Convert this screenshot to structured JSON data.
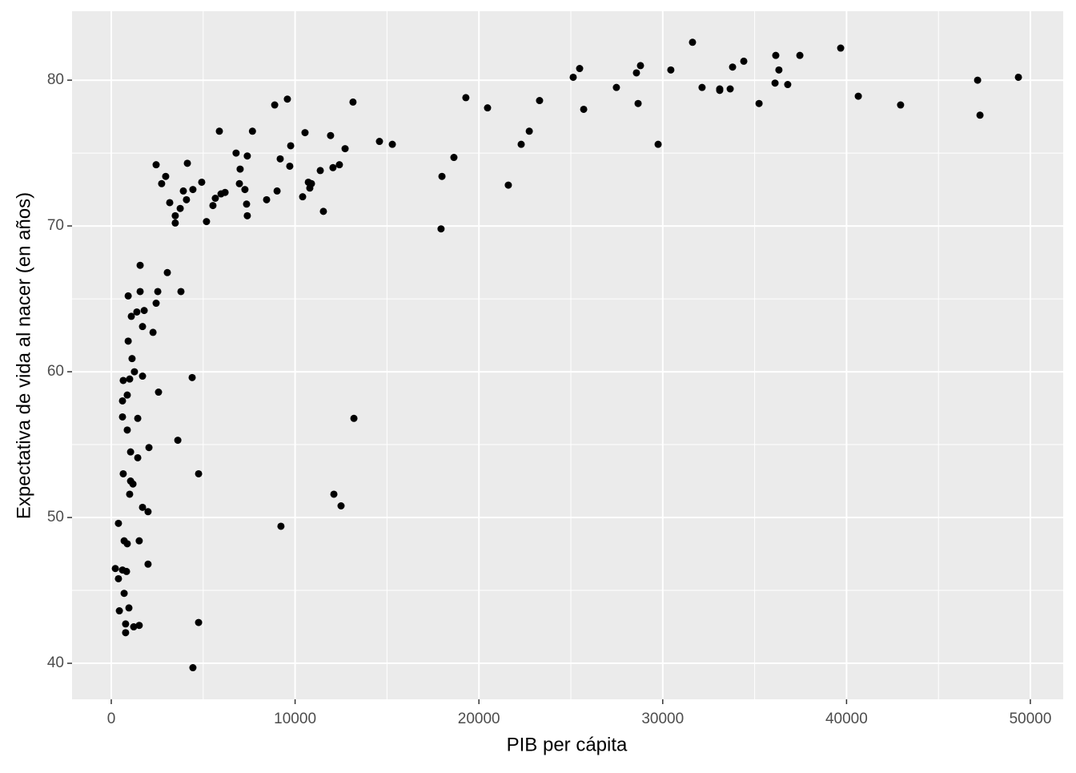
{
  "chart_data": {
    "type": "scatter",
    "x_label": "PIB per cápita",
    "y_label": "Expectativa de vida al nacer (en años)",
    "x": [
      49350,
      47130,
      47260,
      42940,
      40640,
      39680,
      37460,
      36800,
      36110,
      36320,
      36150,
      35240,
      34410,
      33800,
      33670,
      33100,
      33100,
      32140,
      31620,
      30440,
      29750,
      28790,
      28660,
      28570,
      27480,
      25700,
      25480,
      25130,
      23300,
      22740,
      22300,
      21600,
      20470,
      19290,
      18640,
      17990,
      17940,
      15290,
      14590,
      13150,
      13200,
      12720,
      12410,
      12060,
      11930,
      12500,
      12110,
      11540,
      11370,
      10890,
      10800,
      10720,
      10540,
      10410,
      9760,
      9710,
      9580,
      9230,
      9190,
      9020,
      8890,
      8450,
      7680,
      7400,
      7400,
      7360,
      7270,
      7010,
      6970,
      6790,
      6190,
      5970,
      5880,
      5660,
      5530,
      5180,
      4920,
      4750,
      4750,
      4440,
      4400,
      4440,
      4140,
      4090,
      3920,
      3750,
      3790,
      3620,
      3480,
      3480,
      3180,
      3050,
      2960,
      2740,
      2440,
      2530,
      2440,
      2570,
      2270,
      2000,
      2000,
      2050,
      1790,
      1700,
      1700,
      1700,
      1570,
      1570,
      1520,
      1520,
      1440,
      1440,
      1390,
      1260,
      1220,
      1130,
      1180,
      1090,
      1050,
      1000,
      1050,
      1000,
      960,
      920,
      920,
      870,
      870,
      780,
      780,
      830,
      870,
      700,
      700,
      650,
      650,
      610,
      610,
      610,
      390,
      440,
      390,
      220
    ],
    "values": [
      80.2,
      80.0,
      77.6,
      78.3,
      78.9,
      82.2,
      81.7,
      79.7,
      79.8,
      80.7,
      81.7,
      78.4,
      81.3,
      80.9,
      79.4,
      79.4,
      79.3,
      79.5,
      82.6,
      80.7,
      75.6,
      81.0,
      78.4,
      80.5,
      79.5,
      78.0,
      80.8,
      80.2,
      78.6,
      76.5,
      75.6,
      72.8,
      78.1,
      78.8,
      74.7,
      73.4,
      69.8,
      75.6,
      75.8,
      78.5,
      56.8,
      75.3,
      74.2,
      74.0,
      76.2,
      50.8,
      51.6,
      71.0,
      73.8,
      72.9,
      72.6,
      73.0,
      76.4,
      72.0,
      75.5,
      74.1,
      78.7,
      49.4,
      74.6,
      72.4,
      78.3,
      71.8,
      76.5,
      74.8,
      70.7,
      71.5,
      72.5,
      73.9,
      72.9,
      75.0,
      72.3,
      72.2,
      76.5,
      71.9,
      71.4,
      70.3,
      73.0,
      42.8,
      53.0,
      39.7,
      59.6,
      72.5,
      74.3,
      71.8,
      72.4,
      71.2,
      65.5,
      55.3,
      70.7,
      70.2,
      71.6,
      66.8,
      73.4,
      72.9,
      74.2,
      65.5,
      64.7,
      58.6,
      62.7,
      46.8,
      50.4,
      54.8,
      64.2,
      63.1,
      59.7,
      50.7,
      67.3,
      65.5,
      42.6,
      48.4,
      56.8,
      54.1,
      64.1,
      60.0,
      42.5,
      60.9,
      52.3,
      63.8,
      52.5,
      59.5,
      54.5,
      51.6,
      43.8,
      65.2,
      62.1,
      58.4,
      56.0,
      42.7,
      42.1,
      46.3,
      48.2,
      48.4,
      44.8,
      59.4,
      53.0,
      56.9,
      58.0,
      46.4,
      49.6,
      43.6,
      45.8,
      46.5
    ],
    "color": "#000000",
    "xlim": [
      -2134,
      51786
    ],
    "ylim": [
      37.53,
      84.73
    ],
    "xticks": [
      0,
      10000,
      20000,
      30000,
      40000,
      50000
    ],
    "yticks": [
      40,
      50,
      60,
      70,
      80
    ],
    "grid": true
  }
}
